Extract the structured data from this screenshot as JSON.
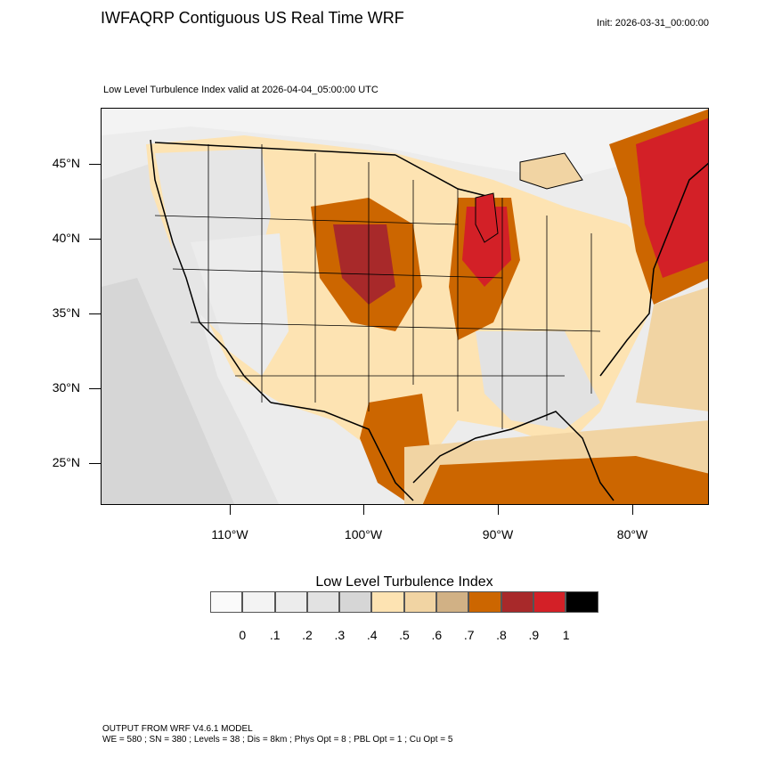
{
  "header": {
    "title": "IWFAQRP Contiguous US Real Time WRF",
    "init": "Init: 2026-03-31_00:00:00",
    "subtitle": "Low Level Turbulence Index valid at 2026-04-04_05:00:00 UTC"
  },
  "map": {
    "lat_labels": [
      "45°N",
      "40°N",
      "35°N",
      "30°N",
      "25°N"
    ],
    "lon_labels": [
      "110°W",
      "100°W",
      "90°W",
      "80°W"
    ]
  },
  "legend": {
    "title": "Low Level Turbulence Index",
    "labels": [
      "0",
      ".1",
      ".2",
      ".3",
      ".4",
      ".5",
      ".6",
      ".7",
      ".8",
      ".9",
      "1"
    ],
    "colors": [
      "#fafafa",
      "#f3f3f3",
      "#ececec",
      "#e2e2e2",
      "#d6d6d6",
      "#fde3b2",
      "#f1d4a3",
      "#d1b185",
      "#cc6600",
      "#a8292a",
      "#d32027",
      "#000000"
    ]
  },
  "footer": {
    "line1": "OUTPUT FROM WRF V4.6.1 MODEL",
    "line2": "WE = 580 ; SN = 380 ; Levels = 38 ; Dis = 8km ; Phys Opt = 8 ; PBL Opt = 1 ; Cu Opt = 5"
  }
}
